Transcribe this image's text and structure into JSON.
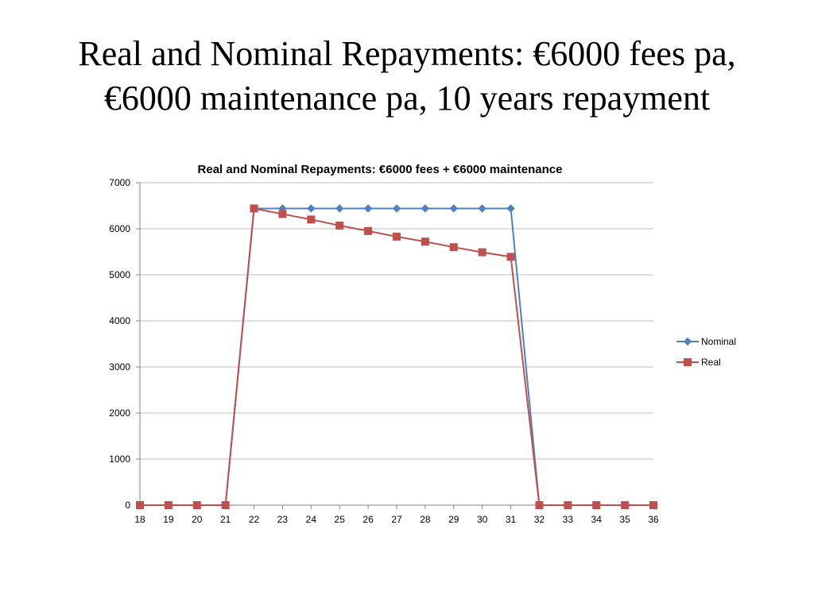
{
  "slide": {
    "title_line1": "Real and Nominal Repayments: €6000 fees pa,",
    "title_line2": "€6000 maintenance pa, 10 years repayment"
  },
  "colors": {
    "nominal": "#4F81BD",
    "real": "#C0504D",
    "grid": "#BFBFBF",
    "axis": "#868686"
  },
  "chart_data": {
    "type": "line",
    "title": "Real and Nominal Repayments: €6000 fees + €6000 maintenance",
    "xlabel": "",
    "ylabel": "",
    "categories": [
      "18",
      "19",
      "20",
      "21",
      "22",
      "23",
      "24",
      "25",
      "26",
      "27",
      "28",
      "29",
      "30",
      "31",
      "32",
      "33",
      "34",
      "35",
      "36"
    ],
    "ylim": [
      0,
      7000
    ],
    "yticks": [
      0,
      1000,
      2000,
      3000,
      4000,
      5000,
      6000,
      7000
    ],
    "grid": true,
    "legend_position": "right",
    "series": [
      {
        "name": "Nominal",
        "marker": "diamond",
        "values": [
          0,
          0,
          0,
          0,
          6440,
          6440,
          6440,
          6440,
          6440,
          6440,
          6440,
          6440,
          6440,
          6440,
          0,
          0,
          0,
          0,
          0
        ]
      },
      {
        "name": "Real",
        "marker": "square",
        "values": [
          0,
          0,
          0,
          0,
          6440,
          6320,
          6200,
          6070,
          5950,
          5830,
          5720,
          5600,
          5490,
          5390,
          0,
          0,
          0,
          0,
          0
        ]
      }
    ]
  }
}
